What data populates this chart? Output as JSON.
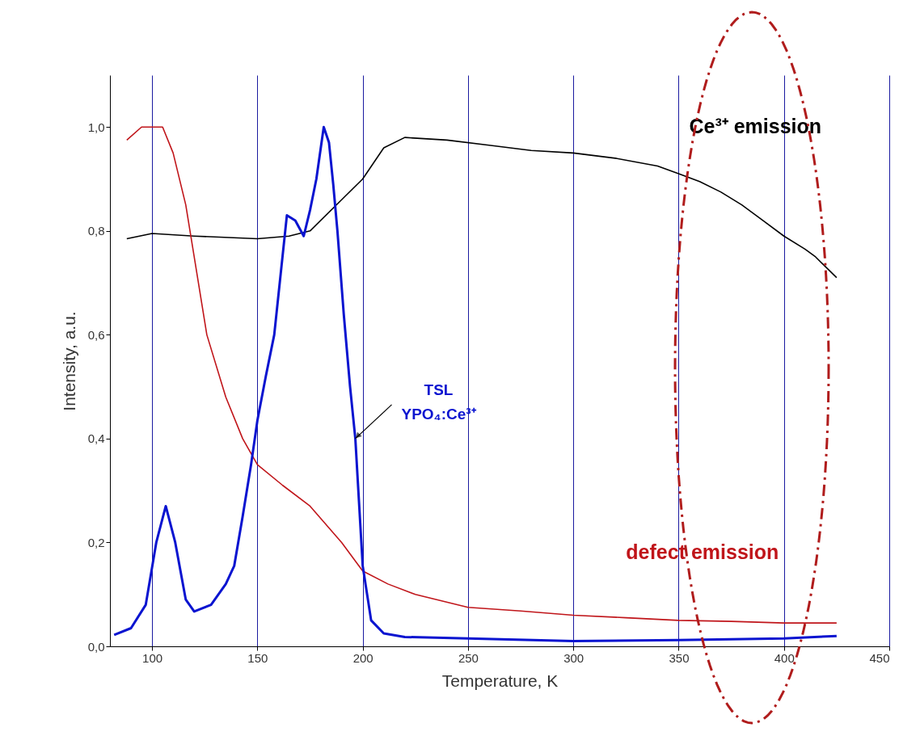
{
  "chart_data": {
    "type": "line",
    "xlabel": "Temperature, K",
    "ylabel": "Intensity, a.u.",
    "xlim": [
      80,
      450
    ],
    "ylim": [
      0,
      1.1
    ],
    "xticks": [
      100,
      150,
      200,
      250,
      300,
      350,
      400,
      450
    ],
    "yticks": [
      {
        "value": 0,
        "label": "0,0"
      },
      {
        "value": 0.2,
        "label": "0,2"
      },
      {
        "value": 0.4,
        "label": "0,4"
      },
      {
        "value": 0.6,
        "label": "0,6"
      },
      {
        "value": 0.8,
        "label": "0,8"
      },
      {
        "value": 1.0,
        "label": "1,0"
      }
    ],
    "grid": "x",
    "marker": "none",
    "line_style": "solid",
    "series": [
      {
        "name": "Ce³⁺ emission",
        "color": "#000000",
        "x": [
          88,
          100,
          120,
          150,
          165,
          175,
          190,
          200,
          210,
          220,
          240,
          260,
          280,
          300,
          320,
          340,
          350,
          360,
          370,
          380,
          390,
          400,
          410,
          415,
          425
        ],
        "values": [
          0.785,
          0.795,
          0.79,
          0.785,
          0.79,
          0.8,
          0.86,
          0.9,
          0.96,
          0.98,
          0.975,
          0.965,
          0.955,
          0.95,
          0.94,
          0.925,
          0.91,
          0.895,
          0.875,
          0.85,
          0.82,
          0.79,
          0.765,
          0.75,
          0.71
        ]
      },
      {
        "name": "defect emission",
        "color": "#c0151a",
        "x": [
          88,
          95,
          100,
          105,
          110,
          116,
          120,
          126,
          135,
          143,
          150,
          162,
          175,
          190,
          200,
          212,
          225,
          250,
          275,
          300,
          325,
          350,
          375,
          400,
          425
        ],
        "values": [
          0.975,
          1.0,
          1.0,
          1.0,
          0.95,
          0.85,
          0.75,
          0.6,
          0.48,
          0.4,
          0.35,
          0.31,
          0.27,
          0.2,
          0.145,
          0.12,
          0.1,
          0.075,
          0.068,
          0.06,
          0.055,
          0.05,
          0.048,
          0.045,
          0.045
        ]
      },
      {
        "color": "#0a14d0",
        "x": [
          82,
          90,
          97,
          102,
          106.5,
          111,
          116,
          120,
          128,
          135,
          139,
          143,
          147,
          150,
          154,
          158,
          164,
          168,
          172,
          175,
          178,
          181.5,
          184,
          186,
          188,
          191,
          194,
          196.5,
          200,
          204,
          210,
          220,
          250,
          300,
          350,
          400,
          425
        ],
        "values": [
          0.022,
          0.035,
          0.08,
          0.2,
          0.27,
          0.2,
          0.09,
          0.067,
          0.08,
          0.12,
          0.155,
          0.25,
          0.35,
          0.435,
          0.52,
          0.6,
          0.83,
          0.82,
          0.79,
          0.84,
          0.9,
          1.0,
          0.97,
          0.89,
          0.8,
          0.64,
          0.5,
          0.4,
          0.155,
          0.05,
          0.025,
          0.018,
          0.015,
          0.01,
          0.012,
          0.015,
          0.02
        ]
      }
    ],
    "annotations": [
      {
        "text": "TSL\nYPO₄:Ce³⁺",
        "x": 196.5,
        "y": 0.4
      }
    ]
  }
}
